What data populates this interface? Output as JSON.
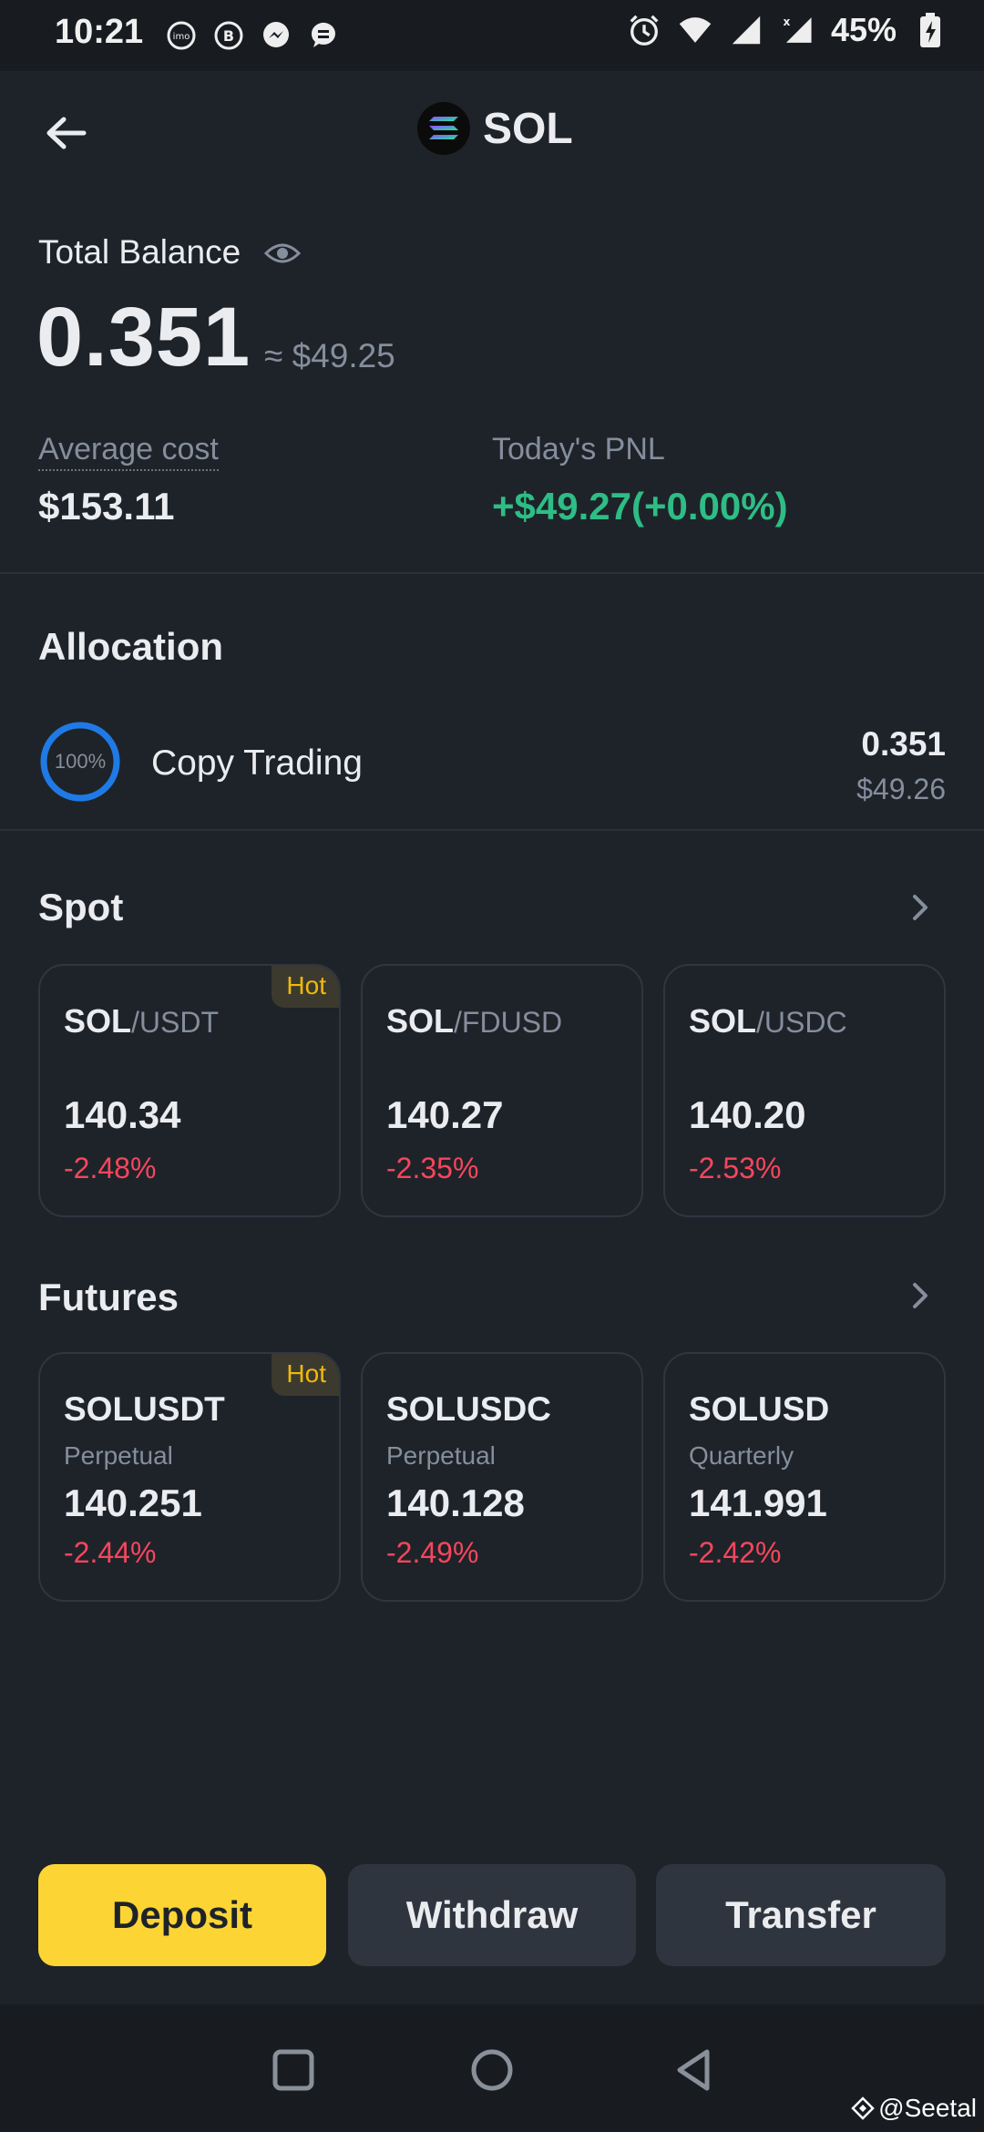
{
  "status_bar": {
    "time": "10:21",
    "battery": "45%",
    "icons": [
      "imo-icon",
      "business-icon",
      "messenger-icon",
      "message-icon",
      "alarm-icon",
      "wifi-icon",
      "signal-icon",
      "signal-x-icon",
      "battery-charging-icon"
    ]
  },
  "header": {
    "title": "SOL",
    "back_icon": "arrow-left-icon"
  },
  "balance": {
    "label": "Total Balance",
    "amount": "0.351",
    "fiat": "≈ $49.25",
    "average_cost_label": "Average cost",
    "average_cost_value": "$153.11",
    "pnl_label": "Today's PNL",
    "pnl_value": "+$49.27(+0.00%)"
  },
  "allocation": {
    "title": "Allocation",
    "items": [
      {
        "percent_label": "100%",
        "percent": 100,
        "name": "Copy Trading",
        "amount": "0.351",
        "fiat": "$49.26"
      }
    ]
  },
  "spot": {
    "title": "Spot",
    "cards": [
      {
        "base": "SOL",
        "quote": "/USDT",
        "price": "140.34",
        "change": "-2.48%",
        "badge": "Hot"
      },
      {
        "base": "SOL",
        "quote": "/FDUSD",
        "price": "140.27",
        "change": "-2.35%",
        "badge": ""
      },
      {
        "base": "SOL",
        "quote": "/USDC",
        "price": "140.20",
        "change": "-2.53%",
        "badge": ""
      }
    ]
  },
  "futures": {
    "title": "Futures",
    "cards": [
      {
        "name": "SOLUSDT",
        "type": "Perpetual",
        "price": "140.251",
        "change": "-2.44%",
        "badge": "Hot"
      },
      {
        "name": "SOLUSDC",
        "type": "Perpetual",
        "price": "140.128",
        "change": "-2.49%",
        "badge": ""
      },
      {
        "name": "SOLUSD",
        "type": "Quarterly",
        "price": "141.991",
        "change": "-2.42%",
        "badge": ""
      }
    ]
  },
  "actions": {
    "deposit": "Deposit",
    "withdraw": "Withdraw",
    "transfer": "Transfer"
  },
  "watermark": "@Seetal",
  "colors": {
    "background": "#1e2329",
    "accent": "#fcd535",
    "positive": "#2ebd85",
    "negative": "#f6465d",
    "ring": "#1f7ae6"
  }
}
